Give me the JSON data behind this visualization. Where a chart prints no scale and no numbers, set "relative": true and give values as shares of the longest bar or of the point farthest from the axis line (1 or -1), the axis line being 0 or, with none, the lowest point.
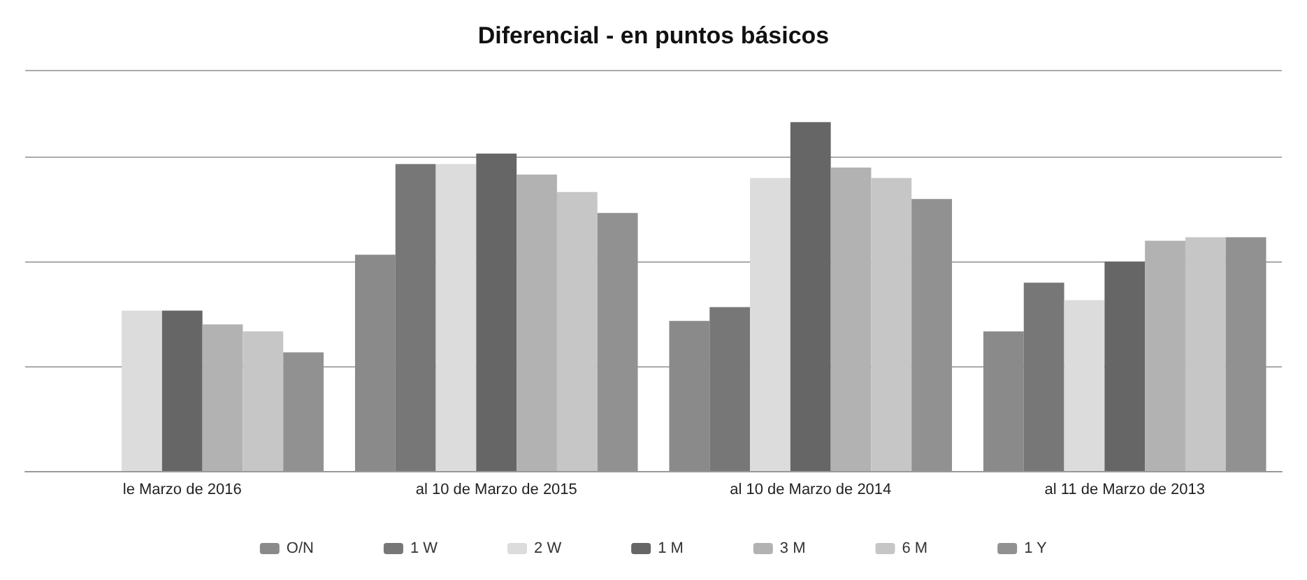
{
  "chart_data": {
    "type": "bar",
    "title": "Diferencial - en puntos básicos",
    "relative": true,
    "grid": "y",
    "legend": "bottom",
    "categories": [
      "le Marzo de 2016",
      "al 10 de Marzo de 2015",
      "al 10 de Marzo de 2014",
      "al 11 de Marzo de 2013"
    ],
    "series": [
      {
        "name": "O/N",
        "color": "#8a8a8a",
        "values": [
          null,
          0.62,
          0.43,
          0.4
        ]
      },
      {
        "name": "1 W",
        "color": "#777777",
        "values": [
          null,
          0.88,
          0.47,
          0.54
        ]
      },
      {
        "name": "2 W",
        "color": "#dcdcdc",
        "values": [
          0.46,
          0.88,
          0.84,
          0.49
        ]
      },
      {
        "name": "1 M",
        "color": "#666666",
        "values": [
          0.46,
          0.91,
          1,
          0.6
        ]
      },
      {
        "name": "3 M",
        "color": "#b2b2b2",
        "values": [
          0.42,
          0.85,
          0.87,
          0.66
        ]
      },
      {
        "name": "6 M",
        "color": "#c6c6c6",
        "values": [
          0.4,
          0.8,
          0.84,
          0.67
        ]
      },
      {
        "name": "1 Y",
        "color": "#919191",
        "values": [
          0.34,
          0.74,
          0.78,
          0.67
        ]
      }
    ]
  }
}
